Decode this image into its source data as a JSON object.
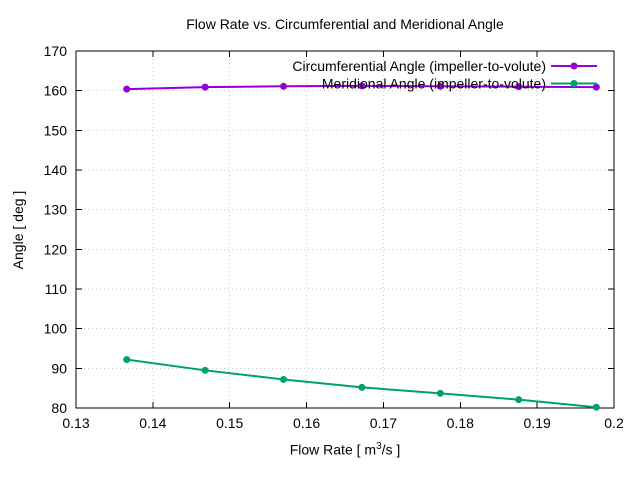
{
  "chart_data": {
    "type": "line",
    "title": "Flow Rate vs. Circumferential and Meridional Angle",
    "xlabel": {
      "prefix": "Flow Rate [ m",
      "sup": "3",
      "suffix": "/s ]"
    },
    "ylabel": "Angle [ deg ]",
    "xlim": [
      0.13,
      0.2
    ],
    "ylim": [
      80,
      170
    ],
    "xticks": [
      0.13,
      0.14,
      0.15,
      0.16,
      0.17,
      0.18,
      0.19,
      0.2
    ],
    "xtick_labels": [
      "0.13",
      "0.14",
      "0.15",
      "0.16",
      "0.17",
      "0.18",
      "0.19",
      "0.2"
    ],
    "yticks": [
      80,
      90,
      100,
      110,
      120,
      130,
      140,
      150,
      160,
      170
    ],
    "ytick_labels": [
      "80",
      "90",
      "100",
      "110",
      "120",
      "130",
      "140",
      "150",
      "160",
      "170"
    ],
    "grid": true,
    "legend_position": "top-right-inside",
    "background_color": "#ffffff",
    "axis_color": "#000000",
    "grid_color": "#cccccc",
    "x": [
      0.1366,
      0.1468,
      0.157,
      0.1672,
      0.1774,
      0.1876,
      0.1977
    ],
    "series": [
      {
        "name": "Circumferential Angle (impeller-to-volute)",
        "color": "#9400d3",
        "values": [
          160.4,
          160.9,
          161.1,
          161.2,
          161.1,
          161.0,
          160.9
        ]
      },
      {
        "name": "Meridional Angle (impeller-to-volute)",
        "color": "#009e73",
        "values": [
          92.2,
          89.5,
          87.2,
          85.2,
          83.7,
          82.1,
          80.2
        ]
      }
    ]
  }
}
